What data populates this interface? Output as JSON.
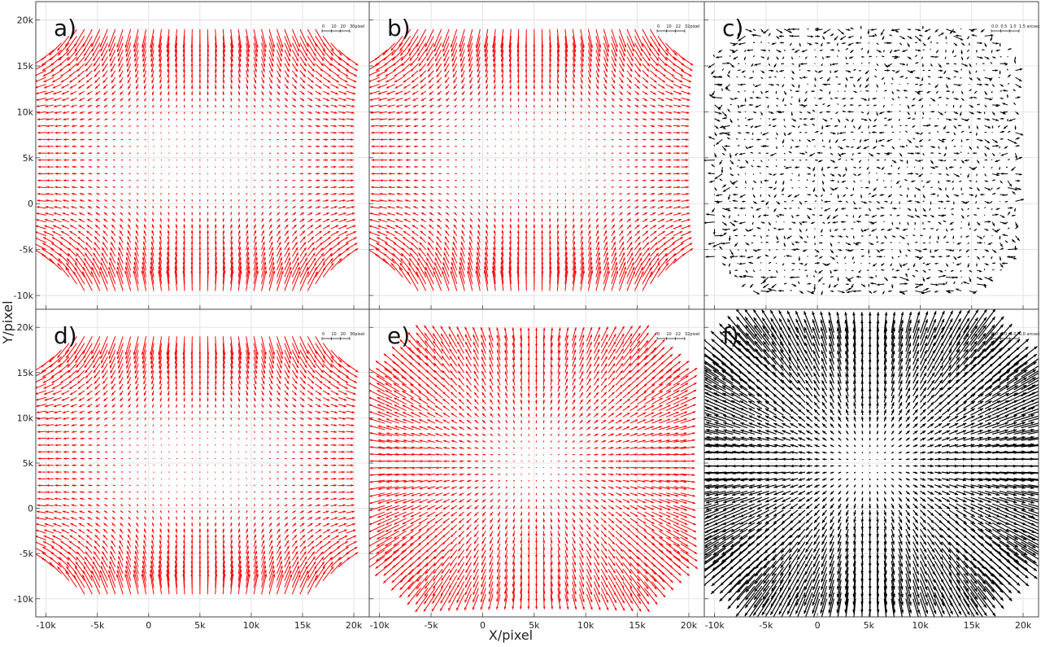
{
  "figure": {
    "xlabel": "X/pixel",
    "ylabel": "Y/pixel"
  },
  "chart_data": {
    "type": "quiver",
    "grid": true,
    "layout": {
      "rows": 2,
      "cols": 3
    },
    "xlim": [
      -11000,
      21500
    ],
    "ylim_top_row": [
      -11500,
      22000
    ],
    "ylim_bottom_row": [
      -12000,
      22000
    ],
    "xticks": [
      -10000,
      -5000,
      0,
      5000,
      10000,
      15000,
      20000
    ],
    "xtick_labels": [
      "-10k",
      "-5k",
      "0",
      "5k",
      "10k",
      "15k",
      "20k"
    ],
    "yticks": [
      -10000,
      -5000,
      0,
      5000,
      10000,
      15000,
      20000
    ],
    "ytick_labels": [
      "-10k",
      "-5k",
      "0",
      "5k",
      "10k",
      "15k",
      "20k"
    ],
    "field_center": [
      5000,
      5000
    ],
    "panels": [
      {
        "label": "a)",
        "color": "#ff0000",
        "pattern": "pincushion-lobes",
        "field_extent": {
          "x": [
            -10000,
            19500
          ],
          "y": [
            -9500,
            19500
          ]
        },
        "corner_cut": 3500,
        "scale_bar_labels": [
          "0",
          "10",
          "20",
          "30pixel"
        ]
      },
      {
        "label": "b)",
        "color": "#ff0000",
        "pattern": "pincushion-lobes",
        "field_extent": {
          "x": [
            -10000,
            19500
          ],
          "y": [
            -9500,
            19500
          ]
        },
        "corner_cut": 3500,
        "scale_bar_labels": [
          "0",
          "10",
          "22",
          "32pixel"
        ]
      },
      {
        "label": "c)",
        "color": "#000000",
        "pattern": "irregular-residual",
        "field_extent": {
          "x": [
            -10000,
            19500
          ],
          "y": [
            -9500,
            19500
          ]
        },
        "corner_cut": 3500,
        "scale_bar_labels": [
          "0.0",
          "0.5",
          "1.0",
          "1.5 arcsec"
        ]
      },
      {
        "label": "d)",
        "color": "#ff0000",
        "pattern": "pincushion-lobes",
        "field_extent": {
          "x": [
            -10000,
            19500
          ],
          "y": [
            -9500,
            19500
          ]
        },
        "corner_cut": 3500,
        "scale_bar_labels": [
          "0",
          "10",
          "20",
          "30pixel"
        ]
      },
      {
        "label": "e)",
        "color": "#ff0000",
        "pattern": "radial-cross",
        "field_extent": {
          "x": [
            -9500,
            19500
          ],
          "y": [
            -9500,
            18500
          ]
        },
        "corner_cut": 4000,
        "scale_bar_labels": [
          "0",
          "10",
          "22",
          "32pixel"
        ]
      },
      {
        "label": "f)",
        "color": "#000000",
        "pattern": "radial-strong",
        "field_extent": {
          "x": [
            -11000,
            21000
          ],
          "y": [
            -10000,
            20000
          ]
        },
        "corner_cut": 5500,
        "scale_bar_labels": [
          "0.0",
          "2.0",
          "4.0",
          "6.0 arcsec"
        ]
      }
    ]
  }
}
